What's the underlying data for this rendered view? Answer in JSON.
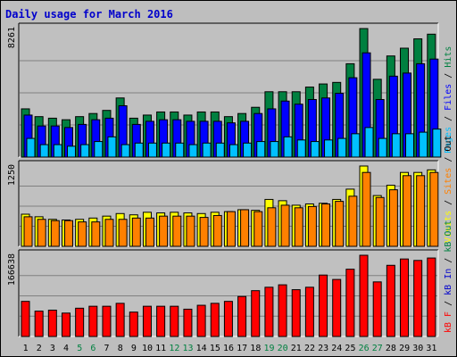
{
  "chart_data": {
    "type": "bar",
    "title": "Daily usage for March 2016",
    "days": [
      "1",
      "2",
      "3",
      "4",
      "5",
      "6",
      "7",
      "8",
      "9",
      "10",
      "11",
      "12",
      "13",
      "14",
      "15",
      "16",
      "17",
      "18",
      "19",
      "20",
      "21",
      "22",
      "23",
      "24",
      "25",
      "26",
      "27",
      "28",
      "29",
      "30",
      "31"
    ],
    "weekend_days": [
      "5",
      "6",
      "12",
      "13",
      "19",
      "20",
      "26",
      "27"
    ],
    "colors": {
      "hits": "#008040",
      "files": "#0000ff",
      "pages": "#00c0ff",
      "visits": "#ffff00",
      "sites": "#ff8000",
      "kbf": "#ff0000",
      "weekday_label": "#000000",
      "weekend_label": "#008040"
    },
    "panels": [
      {
        "id": "hits",
        "y_max_label": "8261",
        "y_max": 8261,
        "legend": [
          {
            "text": "Pages",
            "color": "#00c0ff"
          },
          {
            "text": " / ",
            "color": "#000000"
          },
          {
            "text": "Files",
            "color": "#0000ff"
          },
          {
            "text": " / ",
            "color": "#000000"
          },
          {
            "text": "Hits",
            "color": "#008040"
          }
        ],
        "series": [
          {
            "name": "Hits",
            "color": "#008040",
            "values": [
              3100,
              2600,
              2500,
              2400,
              2600,
              2800,
              3000,
              3800,
              2500,
              2700,
              2900,
              2900,
              2700,
              2900,
              2900,
              2600,
              2800,
              3200,
              4200,
              4200,
              4200,
              4500,
              4700,
              4800,
              6000,
              8261,
              5000,
              6500,
              7000,
              7600,
              7900
            ]
          },
          {
            "name": "Files",
            "color": "#0000ff",
            "values": [
              2700,
              2000,
              2000,
              1900,
              2100,
              2400,
              2500,
              3300,
              2100,
              2300,
              2400,
              2400,
              2300,
              2300,
              2300,
              2200,
              2300,
              2800,
              3100,
              3600,
              3400,
              3700,
              3800,
              4100,
              5100,
              6700,
              3700,
              5200,
              5400,
              6000,
              6300
            ]
          },
          {
            "name": "Pages",
            "color": "#00c0ff",
            "values": [
              1200,
              800,
              800,
              700,
              800,
              1000,
              1300,
              800,
              900,
              900,
              900,
              900,
              800,
              900,
              900,
              800,
              900,
              1000,
              1000,
              1300,
              1100,
              1000,
              1100,
              1200,
              1500,
              1900,
              1200,
              1500,
              1500,
              1600,
              1800
            ]
          }
        ]
      },
      {
        "id": "visits",
        "y_max_label": "1250",
        "y_max": 1250,
        "legend": [
          {
            "text": "Visits",
            "color": "#ffff00"
          },
          {
            "text": " / ",
            "color": "#000000"
          },
          {
            "text": "Sites",
            "color": "#ff8000"
          },
          {
            "text": " / ",
            "color": "#000000"
          },
          {
            "text": "Out",
            "color": "#000000"
          }
        ],
        "series": [
          {
            "name": "Visits",
            "color": "#ffff00",
            "values": [
              500,
              460,
              420,
              410,
              420,
              440,
              470,
              510,
              490,
              530,
              520,
              530,
              520,
              510,
              530,
              540,
              570,
              560,
              730,
              710,
              640,
              660,
              670,
              730,
              890,
              1250,
              790,
              950,
              1150,
              1150,
              1190
            ]
          },
          {
            "name": "Sites",
            "color": "#ff8000",
            "values": [
              460,
              420,
              400,
              400,
              380,
              380,
              420,
              420,
              440,
              440,
              470,
              470,
              470,
              450,
              480,
              540,
              570,
              540,
              600,
              640,
              600,
              620,
              660,
              700,
              780,
              1150,
              760,
              880,
              1100,
              1100,
              1150
            ]
          }
        ]
      },
      {
        "id": "kbf",
        "y_max_label": "166638",
        "y_max": 166638,
        "legend": [
          {
            "text": "kB F",
            "color": "#ff0000"
          },
          {
            "text": " / ",
            "color": "#000000"
          },
          {
            "text": "kB In",
            "color": "#0000cc"
          },
          {
            "text": " / ",
            "color": "#000000"
          },
          {
            "text": "kB Out",
            "color": "#008040"
          }
        ],
        "series": [
          {
            "name": "kB F",
            "color": "#ff0000",
            "values": [
              72000,
              52000,
              54000,
              48000,
              58000,
              62000,
              62000,
              68000,
              50000,
              62000,
              62000,
              62000,
              56000,
              64000,
              68000,
              72000,
              82000,
              94000,
              101000,
              106000,
              96000,
              101000,
              126000,
              117000,
              138000,
              166638,
              112000,
              146000,
              159000,
              156000,
              161000
            ]
          }
        ]
      }
    ]
  }
}
